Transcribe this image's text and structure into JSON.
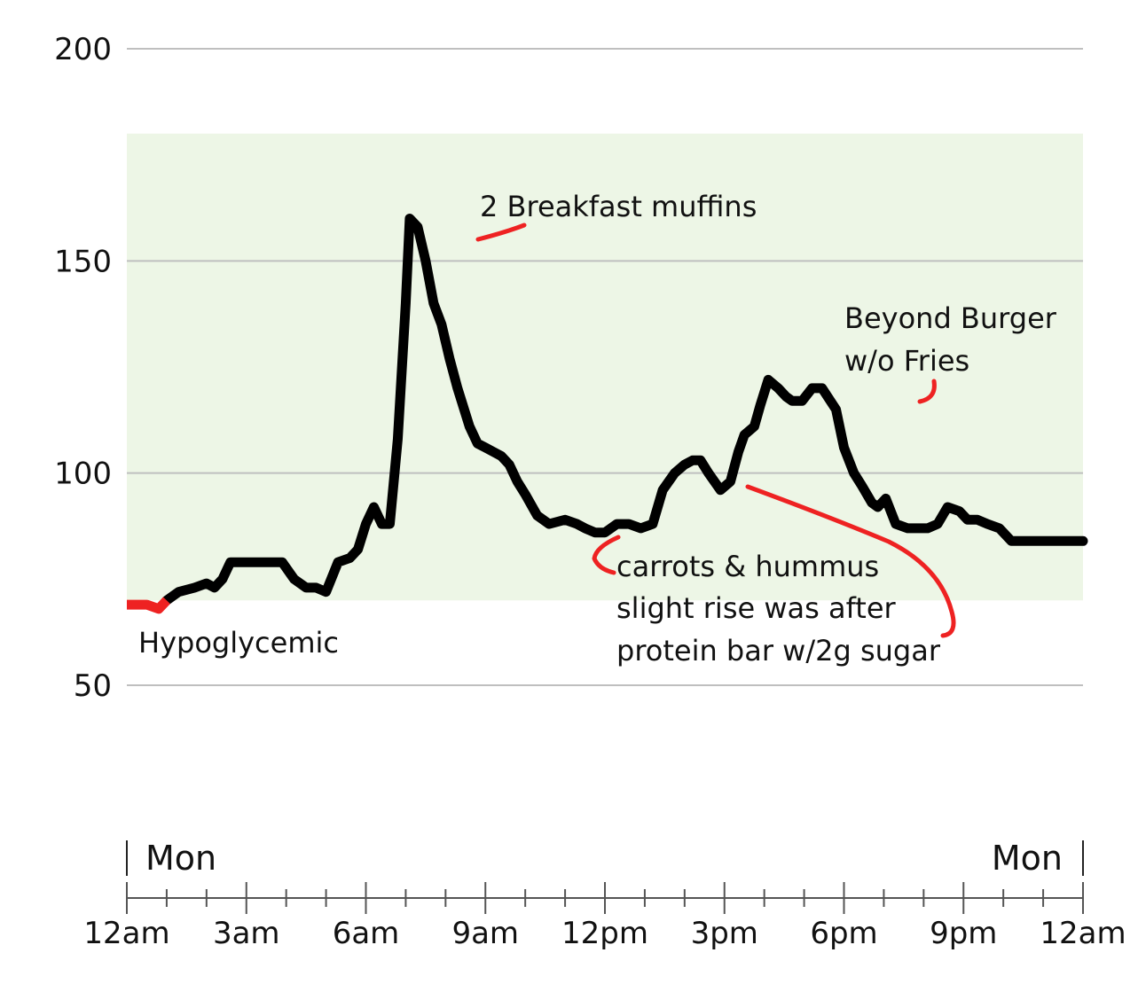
{
  "chart_data": {
    "type": "line",
    "ylim": [
      50,
      200
    ],
    "y_ticks": [
      "200",
      "150",
      "100",
      "50"
    ],
    "x_ticks": [
      "12am",
      "3am",
      "6am",
      "9am",
      "12pm",
      "3pm",
      "6pm",
      "9pm",
      "12am"
    ],
    "day_labels": [
      "Mon",
      "Mon"
    ],
    "target_range": [
      70,
      180
    ],
    "grid": true,
    "colors": {
      "line": "#000000",
      "low": "#ee2222",
      "target_band": "#edf6e6",
      "grid": "#bfbfbf",
      "annotation_marker": "#ee2222"
    },
    "series": [
      {
        "x": [
          0,
          0.5,
          0.8,
          1.0,
          1.3,
          1.7,
          2.0,
          2.2,
          2.4,
          2.6,
          2.95,
          3.25,
          3.55,
          3.9,
          4.2,
          4.5,
          4.75,
          5.0,
          5.3,
          5.6,
          5.8,
          6.0,
          6.2,
          6.4,
          6.6,
          6.8,
          7.0,
          7.1,
          7.3,
          7.5,
          7.7,
          7.9,
          8.1,
          8.3,
          8.6,
          8.8,
          9.0,
          9.2,
          9.4,
          9.6,
          9.8,
          10.0,
          10.3,
          10.6,
          11.0,
          11.3,
          11.5,
          11.75,
          12.0,
          12.3,
          12.6,
          12.9,
          13.2,
          13.45,
          13.75,
          14.0,
          14.2,
          14.4,
          14.6,
          14.9,
          15.15,
          15.35,
          15.5,
          15.75,
          15.9,
          16.1,
          16.35,
          16.55,
          16.7,
          16.95,
          17.2,
          17.45,
          17.8,
          18.0,
          18.25,
          18.45,
          18.7,
          18.85,
          19.05,
          19.3,
          19.6,
          19.85,
          20.1,
          20.35,
          20.6,
          20.9,
          21.1,
          21.35,
          21.6,
          21.9,
          22.2,
          22.4,
          22.7,
          22.9,
          23.2,
          23.55,
          23.85,
          24.0
        ],
        "values": [
          69,
          69,
          68,
          70,
          72,
          73,
          74,
          73,
          75,
          79,
          79,
          79,
          79,
          79,
          75,
          73,
          73,
          72,
          79,
          80,
          82,
          88,
          92,
          88,
          88,
          108,
          140,
          160,
          158,
          150,
          140,
          135,
          127,
          120,
          111,
          107,
          106,
          105,
          104,
          102,
          98,
          95,
          90,
          88,
          89,
          88,
          87,
          86,
          86,
          88,
          88,
          87,
          88,
          96,
          100,
          102,
          103,
          103,
          100,
          96,
          98,
          105,
          109,
          111,
          116,
          122,
          120,
          118,
          117,
          117,
          120,
          120,
          115,
          106,
          100,
          97,
          93,
          92,
          94,
          88,
          87,
          87,
          87,
          88,
          92,
          91,
          89,
          89,
          88,
          87,
          84,
          84,
          84,
          84,
          84,
          84,
          84,
          84
        ]
      }
    ],
    "annotations": [
      "2 Breakfast muffins",
      "Beyond Burger",
      "w/o Fries",
      "carrots & hummus",
      "slight rise was after",
      "protein bar w/2g sugar",
      "Hypoglycemic"
    ]
  }
}
